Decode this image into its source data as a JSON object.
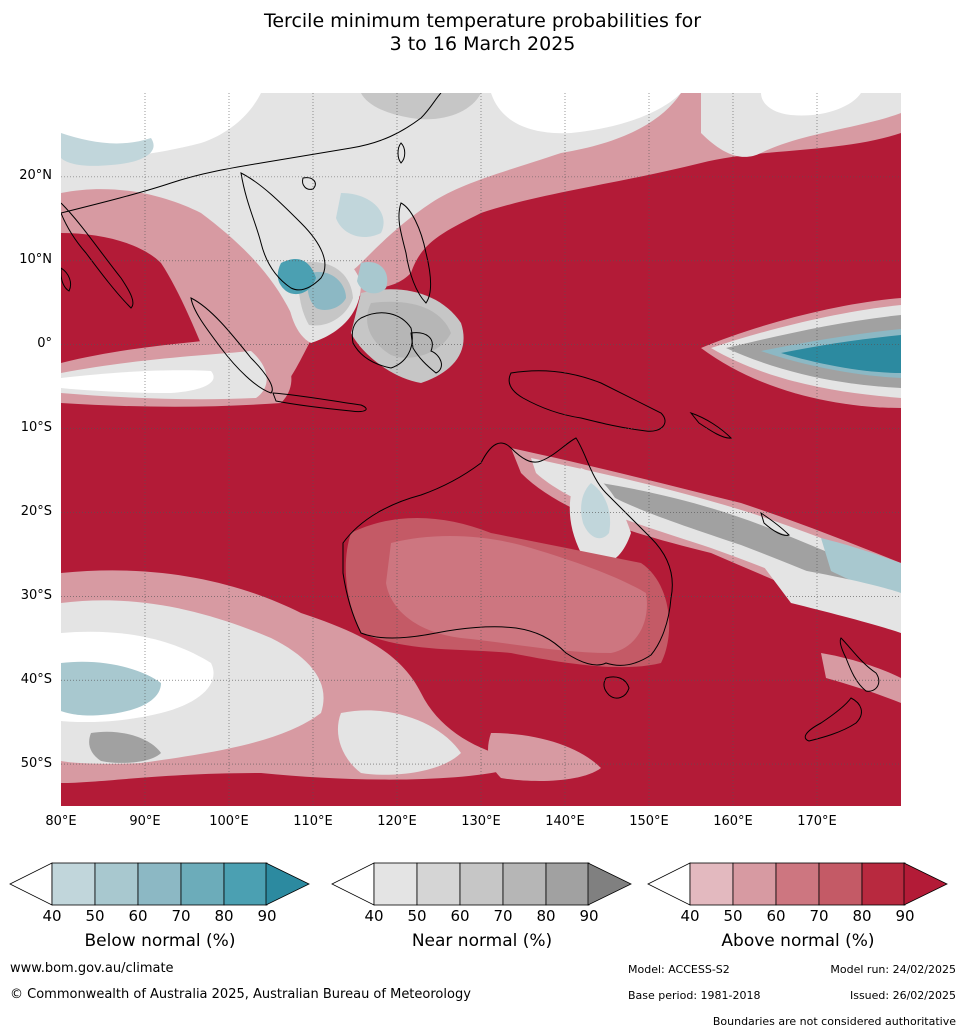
{
  "title": {
    "line1": "Tercile minimum temperature probabilities for",
    "line2": "3 to 16 March 2025"
  },
  "map": {
    "lat_labels": [
      "20°N",
      "10°N",
      "0°",
      "10°S",
      "20°S",
      "30°S",
      "40°S",
      "50°S"
    ],
    "lon_labels": [
      "80°E",
      "90°E",
      "100°E",
      "110°E",
      "120°E",
      "130°E",
      "140°E",
      "150°E",
      "160°E",
      "170°E"
    ],
    "extent": {
      "lon_min": 80,
      "lon_max": 180,
      "lat_min": -55,
      "lat_max": 30
    },
    "colors": {
      "above_90": "#b31b37",
      "above_80": "#b8293f",
      "above_70": "#c45a66",
      "above_60": "#cd7680",
      "above_50": "#d79aa2",
      "above_40": "#e3b9bf",
      "near_80": "#a1a1a1",
      "near_70": "#b6b6b6",
      "near_60": "#c6c6c6",
      "near_50": "#d5d5d5",
      "near_40": "#e4e4e4",
      "below_80": "#4ba0b2",
      "below_90": "#2c8aa0",
      "below_60": "#8cb8c4",
      "below_50": "#a8c8cf",
      "below_40": "#c1d6db"
    }
  },
  "legends": [
    {
      "title": "Below normal (%)",
      "ticks": [
        "40",
        "50",
        "60",
        "70",
        "80",
        "90"
      ],
      "colors": [
        "#c1d6db",
        "#a8c8cf",
        "#8cb8c4",
        "#6cacba",
        "#4ba0b2",
        "#2c8aa0"
      ]
    },
    {
      "title": "Near normal (%)",
      "ticks": [
        "40",
        "50",
        "60",
        "70",
        "80",
        "90"
      ],
      "colors": [
        "#e4e4e4",
        "#d5d5d5",
        "#c6c6c6",
        "#b6b6b6",
        "#a1a1a1",
        "#808080"
      ]
    },
    {
      "title": "Above normal (%)",
      "ticks": [
        "40",
        "50",
        "60",
        "70",
        "80",
        "90"
      ],
      "colors": [
        "#e3b9bf",
        "#d79aa2",
        "#cd7680",
        "#c45a66",
        "#b8293f",
        "#b31b37"
      ]
    }
  ],
  "footer": {
    "website": "www.bom.gov.au/climate",
    "copyright": "© Commonwealth of Australia 2025, Australian Bureau of Meteorology",
    "model": "Model: ACCESS-S2",
    "model_run": "Model run: 24/02/2025",
    "base_period": "Base period: 1981-2018",
    "issued": "Issued: 26/02/2025",
    "disclaimer": "Boundaries are not considered authoritative"
  }
}
